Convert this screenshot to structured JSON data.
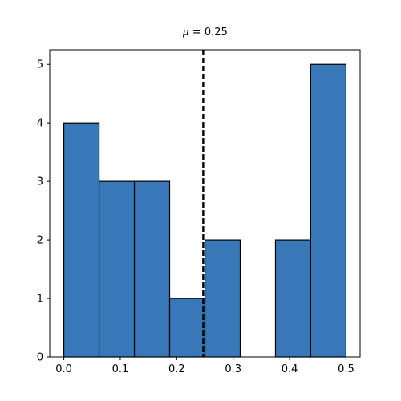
{
  "chart_data": {
    "type": "bar",
    "subtype": "histogram",
    "title": "μ = 0.25",
    "title_symbol": "μ",
    "title_rest": " = 0.25",
    "xlabel": "",
    "ylabel": "",
    "bins": [
      {
        "x0": 0.0,
        "x1": 0.0625,
        "count": 4
      },
      {
        "x0": 0.0625,
        "x1": 0.125,
        "count": 3
      },
      {
        "x0": 0.125,
        "x1": 0.1875,
        "count": 3
      },
      {
        "x0": 0.1875,
        "x1": 0.25,
        "count": 1
      },
      {
        "x0": 0.25,
        "x1": 0.3125,
        "count": 2
      },
      {
        "x0": 0.3125,
        "x1": 0.375,
        "count": 0
      },
      {
        "x0": 0.375,
        "x1": 0.4375,
        "count": 2
      },
      {
        "x0": 0.4375,
        "x1": 0.5,
        "count": 5
      }
    ],
    "mean_line": {
      "x": 0.247,
      "style": "dashed",
      "color": "#000000"
    },
    "xlim": [
      -0.025,
      0.525
    ],
    "ylim": [
      0,
      5.25
    ],
    "xticks": [
      "0.0",
      "0.1",
      "0.2",
      "0.3",
      "0.4",
      "0.5"
    ],
    "xtick_values": [
      0.0,
      0.1,
      0.2,
      0.3,
      0.4,
      0.5
    ],
    "yticks": [
      "0",
      "1",
      "2",
      "3",
      "4",
      "5"
    ],
    "ytick_values": [
      0,
      1,
      2,
      3,
      4,
      5
    ],
    "grid": false,
    "legend": "none",
    "colors": {
      "bar_fill": "#3878b8",
      "bar_edge": "#000000",
      "axes": "#000000"
    }
  }
}
